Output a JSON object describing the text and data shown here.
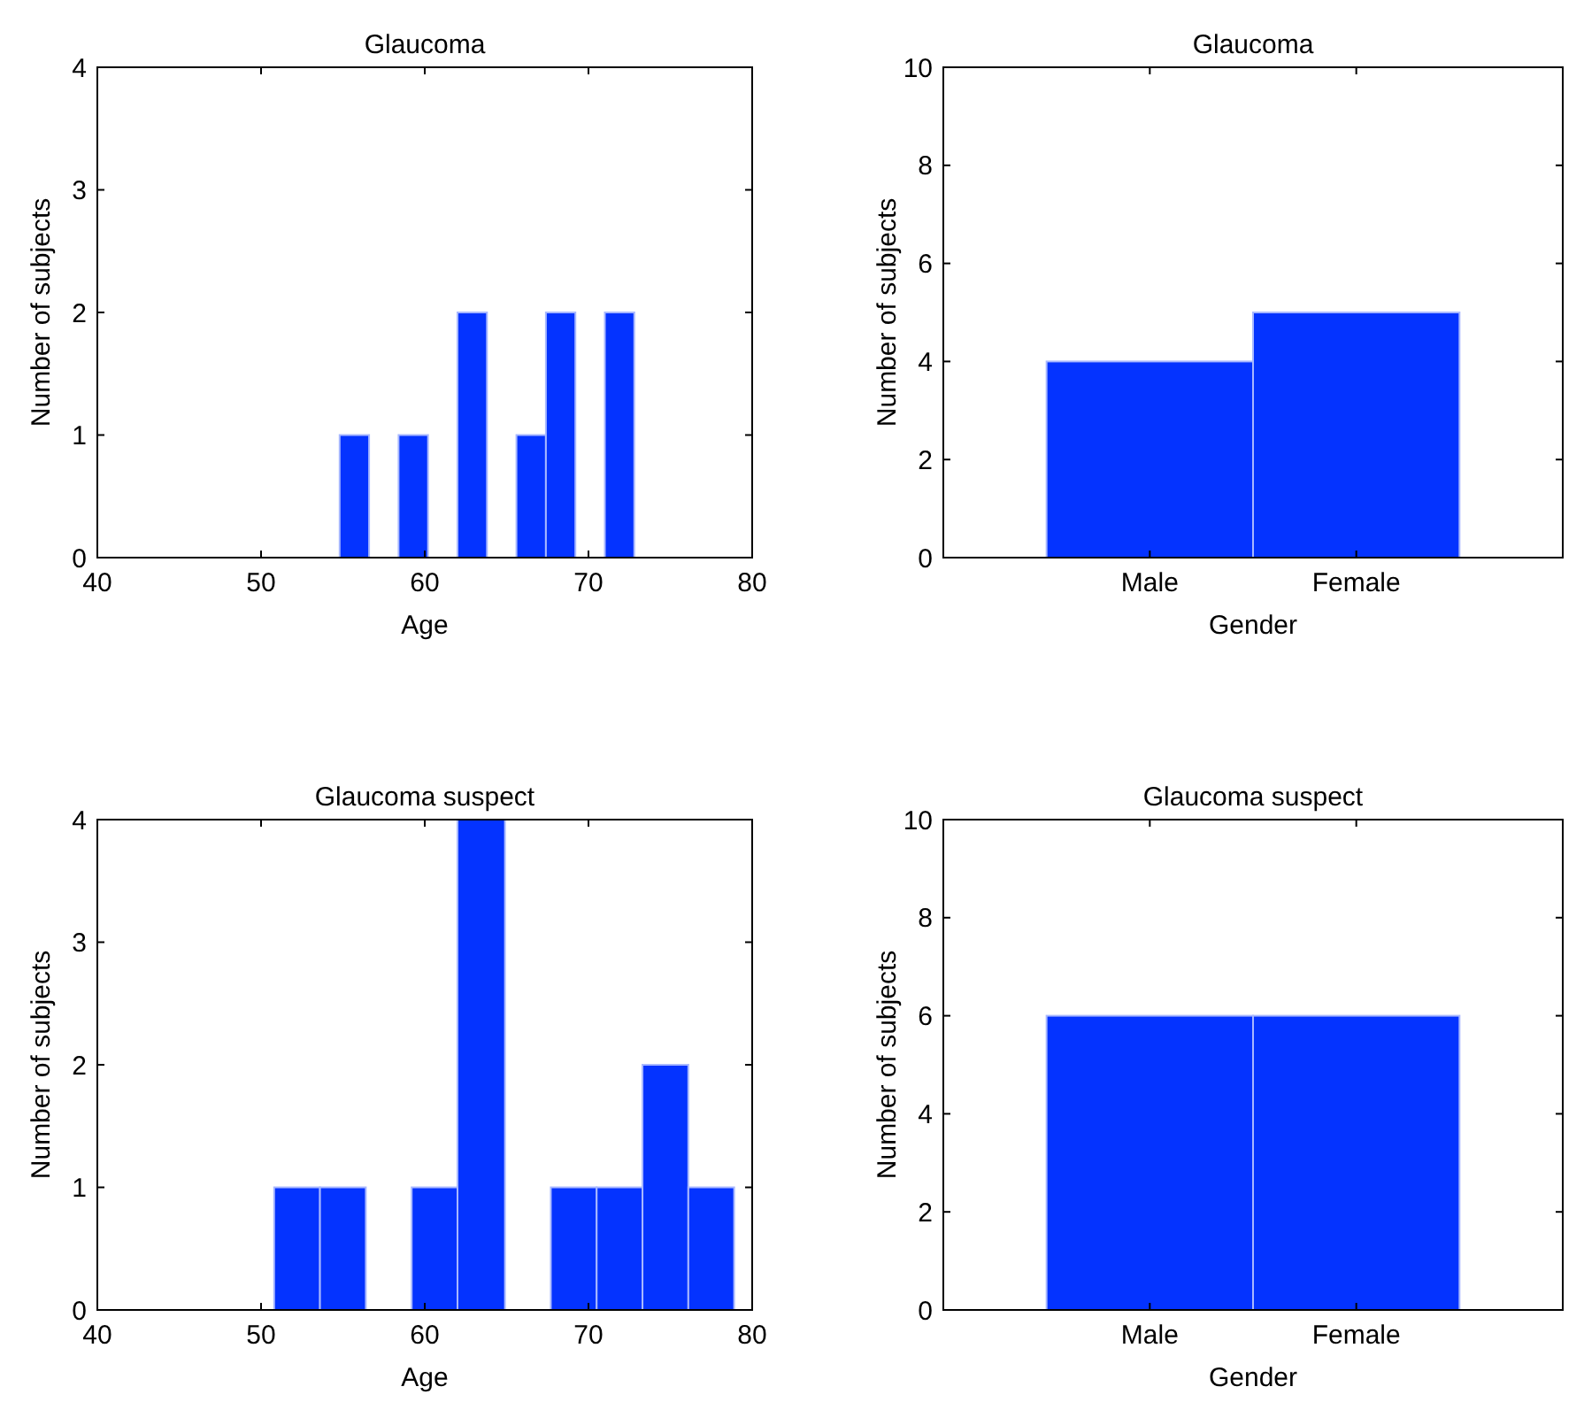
{
  "chart_data": [
    {
      "type": "histogram",
      "title": "Glaucoma",
      "xlabel": "Age",
      "ylabel": "Number of subjects",
      "bins": [
        54.8,
        56.6,
        58.4,
        60.2,
        62.0,
        63.8,
        65.6,
        67.4,
        69.2,
        71.0,
        72.8
      ],
      "values": [
        1,
        0,
        1,
        0,
        2,
        0,
        1,
        2,
        0,
        2
      ],
      "color": "#0433ff",
      "xlim": [
        40,
        80
      ],
      "xticks": [
        40,
        50,
        60,
        70,
        80
      ],
      "ylim": [
        0,
        4
      ],
      "yticks": [
        0,
        1,
        2,
        3,
        4
      ],
      "grid": false
    },
    {
      "type": "bar",
      "title": "Glaucoma",
      "xlabel": "Gender",
      "ylabel": "Number of subjects",
      "categories": [
        "Male",
        "Female"
      ],
      "values": [
        4,
        5
      ],
      "color": "#0433ff",
      "ylim": [
        0,
        10
      ],
      "yticks": [
        0,
        2,
        4,
        6,
        8,
        10
      ],
      "grid": false
    },
    {
      "type": "histogram",
      "title": "Glaucoma suspect",
      "xlabel": "Age",
      "ylabel": "Number of subjects",
      "bins": [
        50.8,
        53.6,
        56.4,
        59.2,
        62.0,
        64.9,
        67.7,
        70.5,
        73.3,
        76.1,
        78.9
      ],
      "values": [
        1,
        1,
        0,
        1,
        4,
        0,
        1,
        1,
        2,
        1
      ],
      "color": "#0433ff",
      "xlim": [
        40,
        80
      ],
      "xticks": [
        40,
        50,
        60,
        70,
        80
      ],
      "ylim": [
        0,
        4
      ],
      "yticks": [
        0,
        1,
        2,
        3,
        4
      ],
      "grid": false
    },
    {
      "type": "bar",
      "title": "Glaucoma suspect",
      "xlabel": "Gender",
      "ylabel": "Number of subjects",
      "categories": [
        "Male",
        "Female"
      ],
      "values": [
        6,
        6
      ],
      "color": "#0433ff",
      "ylim": [
        0,
        10
      ],
      "yticks": [
        0,
        2,
        4,
        6,
        8,
        10
      ],
      "grid": false
    }
  ]
}
